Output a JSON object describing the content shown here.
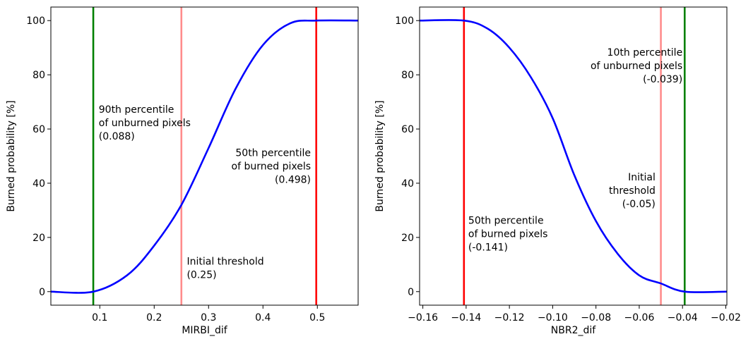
{
  "chart_data": [
    {
      "type": "line",
      "title": "",
      "xlabel": "MIRBI_dif",
      "ylabel": "Burned probability [%]",
      "xlim": [
        0.01,
        0.575
      ],
      "ylim": [
        -5,
        105
      ],
      "xticks": [
        0.1,
        0.2,
        0.3,
        0.4,
        0.5
      ],
      "xtick_labels": [
        "0.1",
        "0.2",
        "0.3",
        "0.4",
        "0.5"
      ],
      "yticks": [
        0,
        20,
        40,
        60,
        80,
        100
      ],
      "ytick_labels": [
        "0",
        "20",
        "40",
        "60",
        "80",
        "100"
      ],
      "grid": false,
      "series": [
        {
          "color": "#0000ff",
          "x": [
            0.01,
            0.088,
            0.15,
            0.2,
            0.25,
            0.3,
            0.35,
            0.4,
            0.45,
            0.498,
            0.575
          ],
          "y": [
            0,
            0,
            6,
            17,
            32,
            53,
            75,
            91,
            99,
            100,
            100
          ]
        }
      ],
      "vlines": [
        {
          "x": 0.088,
          "color": "#008000",
          "alpha": 1
        },
        {
          "x": 0.25,
          "color": "#ff0000",
          "alpha": 0.45
        },
        {
          "x": 0.498,
          "color": "#ff0000",
          "alpha": 1
        }
      ],
      "annotations": [
        {
          "lines": [
            "90th percentile",
            "of unburned pixels",
            "(0.088)"
          ],
          "x": 0.098,
          "y": 66,
          "anchor": "start"
        },
        {
          "lines": [
            "Initial threshold",
            "(0.25)"
          ],
          "x": 0.26,
          "y": 10,
          "anchor": "start"
        },
        {
          "lines": [
            "50th percentile",
            "of burned pixels",
            "(0.498)"
          ],
          "x": 0.488,
          "y": 50,
          "anchor": "end"
        }
      ]
    },
    {
      "type": "line",
      "title": "",
      "xlabel": "NBR2_dif",
      "ylabel": "Burned probability [%]",
      "xlim": [
        -0.1615,
        -0.0195
      ],
      "ylim": [
        -5,
        105
      ],
      "xticks": [
        -0.16,
        -0.14,
        -0.12,
        -0.1,
        -0.08,
        -0.06,
        -0.04,
        -0.02
      ],
      "xtick_labels": [
        "−0.16",
        "−0.14",
        "−0.12",
        "−0.10",
        "−0.08",
        "−0.06",
        "−0.04",
        "−0.02"
      ],
      "yticks": [
        0,
        20,
        40,
        60,
        80,
        100
      ],
      "ytick_labels": [
        "0",
        "20",
        "40",
        "60",
        "80",
        "100"
      ],
      "grid": false,
      "series": [
        {
          "color": "#0000ff",
          "x": [
            -0.1615,
            -0.141,
            -0.13,
            -0.12,
            -0.11,
            -0.1,
            -0.09,
            -0.08,
            -0.07,
            -0.06,
            -0.05,
            -0.039,
            -0.0195
          ],
          "y": [
            100,
            100,
            97,
            90,
            79,
            64,
            43,
            26,
            14,
            6,
            3,
            0,
            0
          ]
        }
      ],
      "vlines": [
        {
          "x": -0.141,
          "color": "#ff0000",
          "alpha": 1
        },
        {
          "x": -0.05,
          "color": "#ff0000",
          "alpha": 0.45
        },
        {
          "x": -0.039,
          "color": "#008000",
          "alpha": 1
        }
      ],
      "annotations": [
        {
          "lines": [
            "10th percentile",
            "of unburned pixels",
            "(-0.039)"
          ],
          "x": -0.04,
          "y": 87,
          "anchor": "end"
        },
        {
          "lines": [
            "Initial",
            "threshold",
            "(-0.05)"
          ],
          "x": -0.0525,
          "y": 41,
          "anchor": "end"
        },
        {
          "lines": [
            "50th percentile",
            "of burned pixels",
            "(-0.141)"
          ],
          "x": -0.139,
          "y": 25,
          "anchor": "start"
        }
      ]
    }
  ]
}
